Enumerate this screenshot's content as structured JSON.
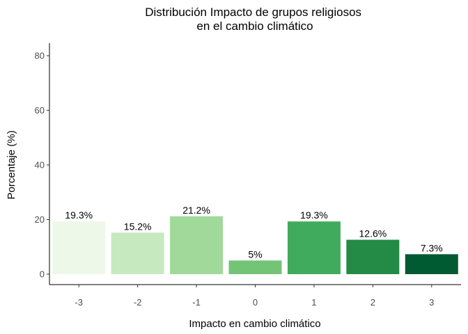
{
  "chart_data": {
    "type": "bar",
    "title_lines": [
      "Distribución Impacto de grupos religiosos",
      "en el cambio climático"
    ],
    "xlabel": "Impacto en cambio climático",
    "ylabel": "Porcentaje (%)",
    "categories": [
      "-3",
      "-2",
      "-1",
      "0",
      "1",
      "2",
      "3"
    ],
    "values": [
      19.3,
      15.2,
      21.2,
      5,
      19.3,
      12.6,
      7.3
    ],
    "data_labels": [
      "19.3%",
      "15.2%",
      "21.2%",
      "5%",
      "19.3%",
      "12.6%",
      "7.3%"
    ],
    "bar_colors": [
      "#edf8e9",
      "#c7e9c0",
      "#a1d99b",
      "#74c476",
      "#41ab5d",
      "#238b45",
      "#005a32"
    ],
    "ylim": [
      0,
      84
    ],
    "yticks": [
      0,
      20,
      40,
      60,
      80
    ],
    "ytick_labels": [
      "0",
      "20",
      "40",
      "60",
      "80"
    ],
    "grid": false,
    "legend": "none"
  }
}
